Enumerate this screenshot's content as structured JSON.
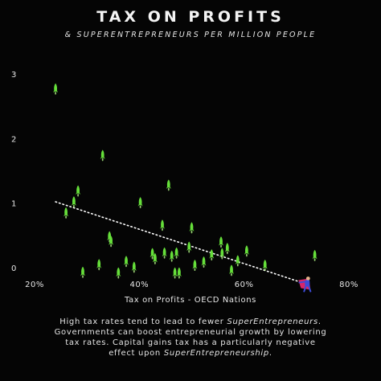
{
  "chart_data": {
    "type": "scatter",
    "title": "TAX ON PROFITS",
    "subtitle": "& SUPERENTREPRENEURS PER MILLION PEOPLE",
    "xlabel": "Tax on Profits - OECD Nations",
    "ylabel": "",
    "xlim": [
      20,
      80
    ],
    "ylim": [
      0,
      3
    ],
    "x_ticks": [
      "20%",
      "40%",
      "60%",
      "80%"
    ],
    "y_ticks": [
      "0",
      "1",
      "2",
      "3"
    ],
    "grid": false,
    "points": [
      {
        "x": 24,
        "y": 2.78
      },
      {
        "x": 26,
        "y": 0.86
      },
      {
        "x": 27.5,
        "y": 1.03
      },
      {
        "x": 28.3,
        "y": 1.2
      },
      {
        "x": 29.2,
        "y": -0.06
      },
      {
        "x": 32.3,
        "y": 0.06
      },
      {
        "x": 33,
        "y": 1.75
      },
      {
        "x": 34.3,
        "y": 0.49
      },
      {
        "x": 34.6,
        "y": 0.42
      },
      {
        "x": 36,
        "y": -0.07
      },
      {
        "x": 37.5,
        "y": 0.11
      },
      {
        "x": 39,
        "y": 0.02
      },
      {
        "x": 40.2,
        "y": 1.02
      },
      {
        "x": 42.5,
        "y": 0.23
      },
      {
        "x": 43,
        "y": 0.15
      },
      {
        "x": 44.4,
        "y": 0.67
      },
      {
        "x": 44.8,
        "y": 0.24
      },
      {
        "x": 45.6,
        "y": 1.29
      },
      {
        "x": 46.2,
        "y": 0.19
      },
      {
        "x": 46.8,
        "y": -0.07
      },
      {
        "x": 47.1,
        "y": 0.24
      },
      {
        "x": 47.6,
        "y": -0.07
      },
      {
        "x": 49.5,
        "y": 0.33
      },
      {
        "x": 50,
        "y": 0.63
      },
      {
        "x": 50.6,
        "y": 0.05
      },
      {
        "x": 52.3,
        "y": 0.1
      },
      {
        "x": 53.8,
        "y": 0.21
      },
      {
        "x": 55.6,
        "y": 0.41
      },
      {
        "x": 55.8,
        "y": 0.23
      },
      {
        "x": 56.8,
        "y": 0.31
      },
      {
        "x": 57.6,
        "y": -0.03
      },
      {
        "x": 58.8,
        "y": 0.12
      },
      {
        "x": 60.5,
        "y": 0.27
      },
      {
        "x": 64,
        "y": 0.05
      },
      {
        "x": 73.5,
        "y": 0.2
      }
    ],
    "trendline": {
      "style": "dotted",
      "from": {
        "x": 24,
        "y": 1.02
      },
      "to": {
        "x": 71,
        "y": -0.23
      }
    },
    "annotation_icon": "superhero-figure-icon",
    "marker_icon": "rocket-icon"
  },
  "caption": {
    "line1_a": "High tax rates tend to lead to fewer ",
    "line1_b": "SuperEntrepreneurs",
    "line1_c": ".",
    "line2": "Governments can boost entrepreneurial growth by lowering",
    "line3": "tax rates. Capital gains tax has a particularly negative",
    "line4_a": "effect upon ",
    "line4_b": "SuperEntrepreneurship",
    "line4_c": "."
  },
  "colors": {
    "background": "#050505",
    "rocket": "#66e03a",
    "rocket_glow": "#b8ff8a",
    "trendline": "#ffffff",
    "text": "#f2f2f2",
    "hero_cape": "#d8266a",
    "hero_suit": "#3c4bd8"
  }
}
